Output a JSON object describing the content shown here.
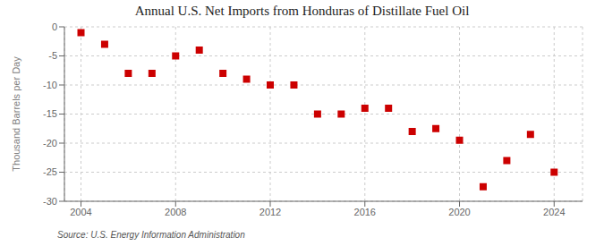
{
  "chart_data": {
    "type": "scatter",
    "title": "Annual U.S. Net Imports from Honduras of Distillate Fuel Oil",
    "y_label": "Thousand Barrels per Day",
    "annotation": "Source: U.S. Energy Information Administration",
    "x": [
      2004,
      2005,
      2006,
      2007,
      2008,
      2009,
      2010,
      2011,
      2012,
      2013,
      2014,
      2015,
      2016,
      2017,
      2018,
      2019,
      2020,
      2021,
      2022,
      2023,
      2024
    ],
    "values": [
      -1.0,
      -3.0,
      -8.0,
      -8.0,
      -5.0,
      -4.0,
      -8.0,
      -9.0,
      -10.0,
      -10.0,
      -15.0,
      -15.0,
      -14.0,
      -14.0,
      -18.0,
      -17.5,
      -19.5,
      -27.5,
      -23.0,
      -18.5,
      -25.0
    ],
    "color": "#cc0000",
    "marker": "square",
    "xlim": [
      2003.3,
      2025.2
    ],
    "xticks": [
      2004,
      2008,
      2012,
      2016,
      2020,
      2024
    ],
    "ylim": [
      -30,
      0
    ],
    "yticks": [
      0,
      -5,
      -10,
      -15,
      -20,
      -25,
      -30
    ],
    "grid": true
  }
}
